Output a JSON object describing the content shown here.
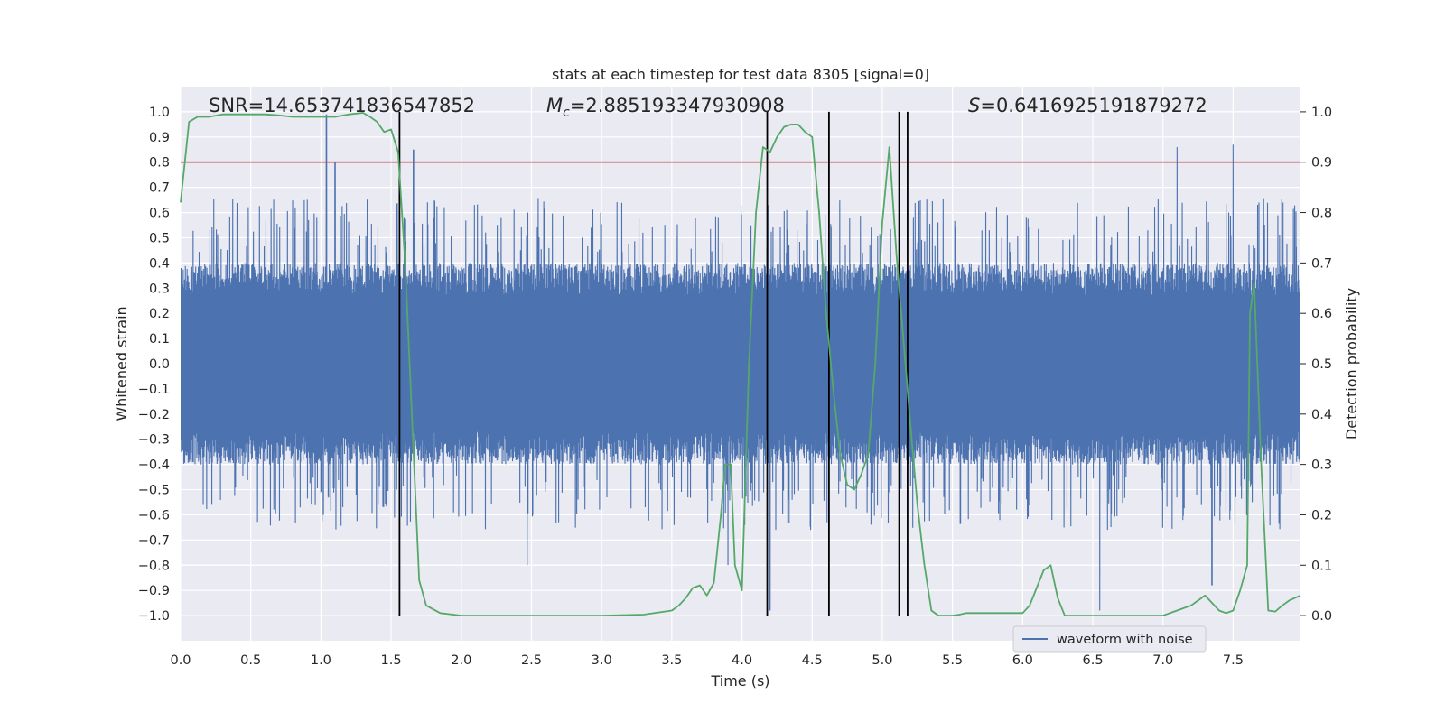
{
  "chart_data": {
    "type": "line",
    "title": "stats at each timestep for test data 8305 [signal=0]",
    "xlabel": "Time (s)",
    "ylabel_left": "Whitened strain",
    "ylabel_right": "Detection probability",
    "xlim": [
      0,
      7.98
    ],
    "ylim_left": [
      -1.1,
      1.1
    ],
    "ylim_right": [
      -0.05,
      1.05
    ],
    "x_ticks": [
      "0.0",
      "0.5",
      "1.0",
      "1.5",
      "2.0",
      "2.5",
      "3.0",
      "3.5",
      "4.0",
      "4.5",
      "5.0",
      "5.5",
      "6.0",
      "6.5",
      "7.0",
      "7.5"
    ],
    "y_ticks_left": [
      "1.0",
      "0.9",
      "0.8",
      "0.7",
      "0.6",
      "0.5",
      "0.4",
      "0.3",
      "0.2",
      "0.1",
      "0.0",
      "−0.1",
      "−0.2",
      "−0.3",
      "−0.4",
      "−0.5",
      "−0.6",
      "−0.7",
      "−0.8",
      "−0.9",
      "−1.0"
    ],
    "y_ticks_right": [
      "1.0",
      "0.9",
      "0.8",
      "0.7",
      "0.6",
      "0.5",
      "0.4",
      "0.3",
      "0.2",
      "0.1",
      "0.0"
    ],
    "grid": true,
    "legend_position": "bottom-right",
    "annotations": {
      "snr": "SNR=14.653741836547852",
      "mc_symbol": "M",
      "mc_sub": "c",
      "mc_value": "=2.885193347930908",
      "s_symbol": "S",
      "s_value": "=0.6416925191879272"
    },
    "series": [
      {
        "name": "waveform with noise",
        "axis": "left",
        "color": "#4c72b0",
        "description": "dense whitened-strain noise, mostly within ±0.45 with spikes up to ~1.0 and down to ~-1.0",
        "spikes": [
          [
            1.04,
            0.99
          ],
          [
            1.1,
            0.8
          ],
          [
            1.66,
            0.85
          ],
          [
            3.9,
            -0.8
          ],
          [
            4.2,
            -0.98
          ],
          [
            6.55,
            -0.98
          ],
          [
            7.1,
            0.86
          ],
          [
            7.5,
            0.87
          ],
          [
            7.35,
            -0.88
          ],
          [
            2.47,
            -0.8
          ]
        ]
      },
      {
        "axis": "right",
        "color": "#55a868",
        "x": [
          0.0,
          0.06,
          0.12,
          0.2,
          0.3,
          0.4,
          0.5,
          0.6,
          0.7,
          0.8,
          0.9,
          1.0,
          1.1,
          1.2,
          1.3,
          1.35,
          1.4,
          1.45,
          1.5,
          1.55,
          1.6,
          1.7,
          1.75,
          1.85,
          2.0,
          2.5,
          3.0,
          3.3,
          3.5,
          3.55,
          3.6,
          3.65,
          3.7,
          3.75,
          3.8,
          3.85,
          3.88,
          3.92,
          3.95,
          4.0,
          4.05,
          4.1,
          4.15,
          4.2,
          4.25,
          4.3,
          4.35,
          4.4,
          4.45,
          4.5,
          4.55,
          4.6,
          4.65,
          4.7,
          4.75,
          4.8,
          4.85,
          4.9,
          4.95,
          5.0,
          5.05,
          5.1,
          5.15,
          5.2,
          5.25,
          5.3,
          5.35,
          5.4,
          5.45,
          5.5,
          5.55,
          5.6,
          5.7,
          5.8,
          6.0,
          6.05,
          6.1,
          6.15,
          6.2,
          6.25,
          6.3,
          6.4,
          6.5,
          6.7,
          6.8,
          7.0,
          7.1,
          7.2,
          7.25,
          7.3,
          7.35,
          7.4,
          7.45,
          7.5,
          7.55,
          7.6,
          7.62,
          7.65,
          7.7,
          7.75,
          7.8,
          7.85,
          7.9,
          7.98
        ],
        "y": [
          0.82,
          0.98,
          0.99,
          0.99,
          0.995,
          0.995,
          0.995,
          0.995,
          0.993,
          0.99,
          0.99,
          0.99,
          0.99,
          0.995,
          0.998,
          0.99,
          0.98,
          0.96,
          0.965,
          0.92,
          0.7,
          0.07,
          0.02,
          0.005,
          0.0,
          0.0,
          0.0,
          0.002,
          0.01,
          0.02,
          0.035,
          0.055,
          0.06,
          0.04,
          0.065,
          0.2,
          0.3,
          0.3,
          0.1,
          0.05,
          0.5,
          0.8,
          0.93,
          0.92,
          0.95,
          0.97,
          0.975,
          0.975,
          0.96,
          0.95,
          0.8,
          0.6,
          0.45,
          0.32,
          0.26,
          0.25,
          0.28,
          0.32,
          0.5,
          0.78,
          0.93,
          0.72,
          0.55,
          0.38,
          0.22,
          0.1,
          0.01,
          0.0,
          0.0,
          0.0,
          0.002,
          0.005,
          0.005,
          0.005,
          0.005,
          0.02,
          0.055,
          0.09,
          0.1,
          0.035,
          0.0,
          0.0,
          0.0,
          0.0,
          0.0,
          0.0,
          0.01,
          0.02,
          0.03,
          0.04,
          0.025,
          0.01,
          0.005,
          0.01,
          0.05,
          0.1,
          0.6,
          0.66,
          0.3,
          0.01,
          0.008,
          0.02,
          0.03,
          0.04
        ]
      }
    ],
    "threshold": {
      "axis": "right",
      "value": 0.9,
      "color": "#c44e52"
    },
    "vlines": [
      1.56,
      4.18,
      4.62,
      5.12,
      5.18
    ],
    "vline_color": "#000000"
  }
}
